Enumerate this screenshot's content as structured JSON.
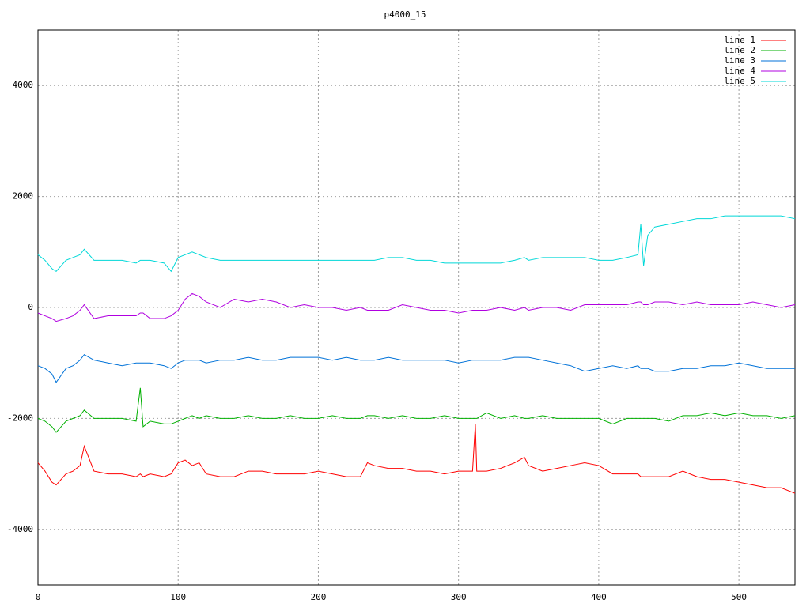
{
  "chart_data": {
    "type": "line",
    "title": "p4000_15",
    "x": [
      0,
      5,
      10,
      13,
      20,
      25,
      30,
      33,
      40,
      50,
      60,
      70,
      73,
      75,
      80,
      90,
      95,
      100,
      105,
      110,
      115,
      120,
      130,
      140,
      150,
      160,
      170,
      180,
      190,
      200,
      210,
      220,
      230,
      235,
      240,
      250,
      260,
      270,
      280,
      290,
      300,
      310,
      312,
      313,
      320,
      330,
      340,
      347,
      350,
      360,
      370,
      380,
      390,
      400,
      410,
      420,
      428,
      430,
      432,
      435,
      440,
      450,
      460,
      470,
      480,
      490,
      500,
      510,
      520,
      530,
      540
    ],
    "series": [
      {
        "name": "line 1",
        "color": "#ff0000",
        "values": [
          -2800,
          -2950,
          -3150,
          -3200,
          -3000,
          -2950,
          -2850,
          -2500,
          -2950,
          -3000,
          -3000,
          -3050,
          -3000,
          -3050,
          -3000,
          -3050,
          -3000,
          -2800,
          -2750,
          -2850,
          -2800,
          -3000,
          -3050,
          -3050,
          -2950,
          -2950,
          -3000,
          -3000,
          -3000,
          -2950,
          -3000,
          -3050,
          -3050,
          -2800,
          -2850,
          -2900,
          -2900,
          -2950,
          -2950,
          -3000,
          -2950,
          -2950,
          -2100,
          -2950,
          -2950,
          -2900,
          -2800,
          -2700,
          -2850,
          -2950,
          -2900,
          -2850,
          -2800,
          -2850,
          -3000,
          -3000,
          -3000,
          -3050,
          -3050,
          -3050,
          -3050,
          -3050,
          -2950,
          -3050,
          -3100,
          -3100,
          -3150,
          -3200,
          -3250,
          -3250,
          -3350
        ]
      },
      {
        "name": "line 2",
        "color": "#00b000",
        "values": [
          -2000,
          -2050,
          -2150,
          -2250,
          -2050,
          -2000,
          -1950,
          -1850,
          -2000,
          -2000,
          -2000,
          -2050,
          -1450,
          -2150,
          -2050,
          -2100,
          -2100,
          -2050,
          -2000,
          -1950,
          -2000,
          -1950,
          -2000,
          -2000,
          -1950,
          -2000,
          -2000,
          -1950,
          -2000,
          -2000,
          -1950,
          -2000,
          -2000,
          -1950,
          -1950,
          -2000,
          -1950,
          -2000,
          -2000,
          -1950,
          -2000,
          -2000,
          -2000,
          -2000,
          -1900,
          -2000,
          -1950,
          -2000,
          -2000,
          -1950,
          -2000,
          -2000,
          -2000,
          -2000,
          -2100,
          -2000,
          -2000,
          -2000,
          -2000,
          -2000,
          -2000,
          -2050,
          -1950,
          -1950,
          -1900,
          -1950,
          -1900,
          -1950,
          -1950,
          -2000,
          -1950
        ]
      },
      {
        "name": "line 3",
        "color": "#0072d8",
        "values": [
          -1050,
          -1100,
          -1200,
          -1350,
          -1100,
          -1050,
          -950,
          -850,
          -950,
          -1000,
          -1050,
          -1000,
          -1000,
          -1000,
          -1000,
          -1050,
          -1100,
          -1000,
          -950,
          -950,
          -950,
          -1000,
          -950,
          -950,
          -900,
          -950,
          -950,
          -900,
          -900,
          -900,
          -950,
          -900,
          -950,
          -950,
          -950,
          -900,
          -950,
          -950,
          -950,
          -950,
          -1000,
          -950,
          -950,
          -950,
          -950,
          -950,
          -900,
          -900,
          -900,
          -950,
          -1000,
          -1050,
          -1150,
          -1100,
          -1050,
          -1100,
          -1050,
          -1100,
          -1100,
          -1100,
          -1150,
          -1150,
          -1100,
          -1100,
          -1050,
          -1050,
          -1000,
          -1050,
          -1100,
          -1100,
          -1100
        ]
      },
      {
        "name": "line 4",
        "color": "#b000e0",
        "values": [
          -100,
          -150,
          -200,
          -250,
          -200,
          -150,
          -50,
          50,
          -200,
          -150,
          -150,
          -150,
          -100,
          -100,
          -200,
          -200,
          -150,
          -50,
          150,
          250,
          200,
          100,
          0,
          150,
          100,
          150,
          100,
          0,
          50,
          0,
          0,
          -50,
          0,
          -50,
          -50,
          -50,
          50,
          0,
          -50,
          -50,
          -100,
          -50,
          -50,
          -50,
          -50,
          0,
          -50,
          0,
          -50,
          0,
          0,
          -50,
          50,
          50,
          50,
          50,
          100,
          100,
          50,
          50,
          100,
          100,
          50,
          100,
          50,
          50,
          50,
          100,
          50,
          0,
          50
        ]
      },
      {
        "name": "line 5",
        "color": "#00d8d8",
        "values": [
          950,
          850,
          700,
          650,
          850,
          900,
          950,
          1050,
          850,
          850,
          850,
          800,
          850,
          850,
          850,
          800,
          650,
          900,
          950,
          1000,
          950,
          900,
          850,
          850,
          850,
          850,
          850,
          850,
          850,
          850,
          850,
          850,
          850,
          850,
          850,
          900,
          900,
          850,
          850,
          800,
          800,
          800,
          800,
          800,
          800,
          800,
          850,
          900,
          850,
          900,
          900,
          900,
          900,
          850,
          850,
          900,
          950,
          1500,
          750,
          1300,
          1450,
          1500,
          1550,
          1600,
          1600,
          1650,
          1650,
          1650,
          1650,
          1650,
          1600
        ]
      }
    ],
    "xlim": [
      0,
      540
    ],
    "ylim": [
      -5000,
      5000
    ],
    "xticks": [
      0,
      100,
      200,
      300,
      400,
      500
    ],
    "yticks": [
      -4000,
      -2000,
      0,
      2000,
      4000
    ],
    "grid": true,
    "legend": "top-right"
  }
}
